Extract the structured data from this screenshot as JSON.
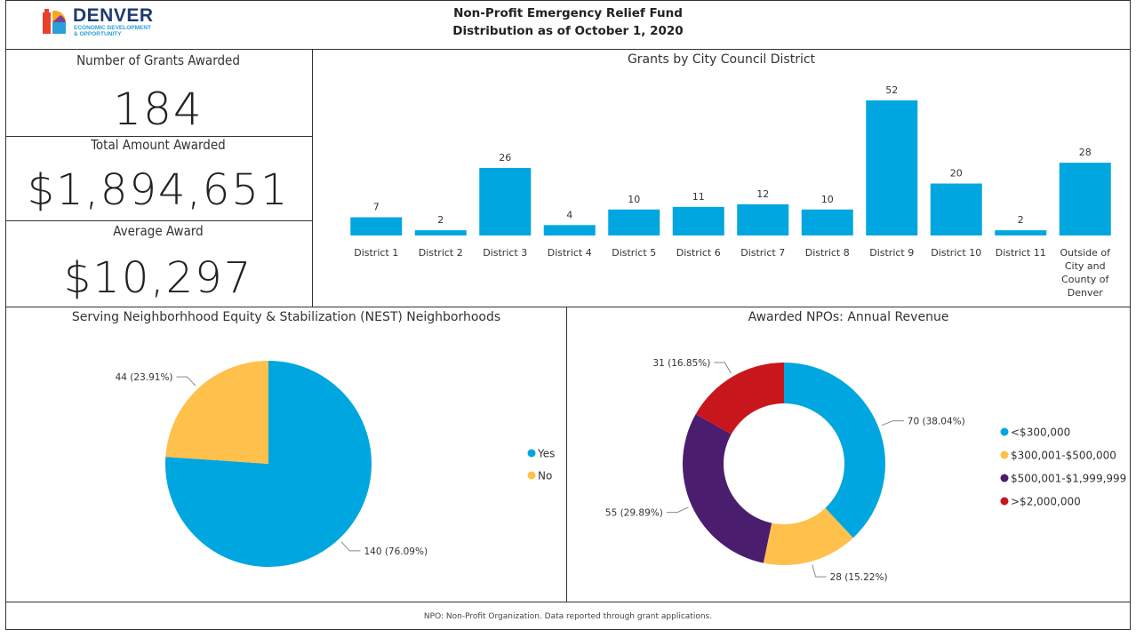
{
  "header": {
    "logo_name": "DENVER",
    "logo_sub_line1": "ECONOMIC DEVELOPMENT",
    "logo_sub_line2": "& OPPORTUNITY",
    "title_line1": "Non-Profit Emergency Relief Fund",
    "title_line2": "Distribution as of October 1, 2020"
  },
  "kpis": {
    "grants_label": "Number of Grants Awarded",
    "grants_value": "184",
    "total_label": "Total Amount Awarded",
    "total_value": "$1,894,651",
    "average_label": "Average Award",
    "average_value": "$10,297"
  },
  "colors": {
    "blue": "#00a6e0",
    "yellow": "#ffc04c",
    "purple": "#4a1d6e",
    "red": "#c8161d"
  },
  "chart_data": [
    {
      "type": "bar",
      "title": "Grants by City Council District",
      "categories": [
        "District 1",
        "District 2",
        "District 3",
        "District 4",
        "District 5",
        "District 6",
        "District 7",
        "District 8",
        "District 9",
        "District 10",
        "District 11",
        "Outside of City and County of Denver"
      ],
      "category_lines": [
        [
          "District 1"
        ],
        [
          "District 2"
        ],
        [
          "District 3"
        ],
        [
          "District 4"
        ],
        [
          "District 5"
        ],
        [
          "District 6"
        ],
        [
          "District 7"
        ],
        [
          "District 8"
        ],
        [
          "District 9"
        ],
        [
          "District 10"
        ],
        [
          "District 11"
        ],
        [
          "Outside of",
          "City and",
          "County of",
          "Denver"
        ]
      ],
      "values": [
        7,
        2,
        26,
        4,
        10,
        11,
        12,
        10,
        52,
        20,
        2,
        28
      ],
      "ylim": [
        0,
        52
      ],
      "color": "#00a6e0",
      "grid": false
    },
    {
      "type": "pie",
      "title": "Serving Neighborhhood Equity & Stabilization (NEST) Neighborhoods",
      "slices": [
        {
          "label": "Yes",
          "value": 140,
          "percent": "76.09%",
          "color": "#00a6e0"
        },
        {
          "label": "No",
          "value": 44,
          "percent": "23.91%",
          "color": "#ffc04c"
        }
      ],
      "data_labels": [
        "140 (76.09%)",
        "44 (23.91%)"
      ],
      "legend": "right"
    },
    {
      "type": "pie",
      "subtype": "donut",
      "title": "Awarded NPOs: Annual Revenue",
      "slices": [
        {
          "label": "<$300,000",
          "value": 70,
          "percent": "38.04%",
          "color": "#00a6e0"
        },
        {
          "label": "$300,001-$500,000",
          "value": 28,
          "percent": "15.22%",
          "color": "#ffc04c"
        },
        {
          "label": "$500,001-$1,999,999",
          "value": 55,
          "percent": "29.89%",
          "color": "#4a1d6e"
        },
        {
          "label": ">$2,000,000",
          "value": 31,
          "percent": "16.85%",
          "color": "#c8161d"
        }
      ],
      "data_labels": [
        "70 (38.04%)",
        "28 (15.22%)",
        "55 (29.89%)",
        "31 (16.85%)"
      ],
      "legend": "right"
    }
  ],
  "footer": {
    "note": "NPO: Non-Profit Organization. Data reported through grant applications."
  }
}
